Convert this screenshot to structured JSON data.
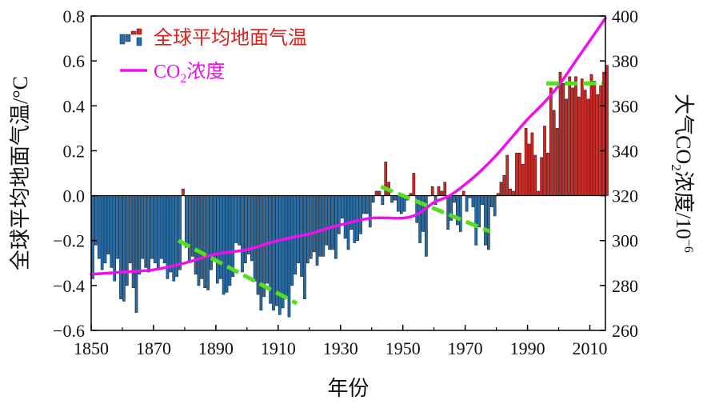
{
  "chart_data": {
    "type": "bar",
    "x_label": "年份",
    "y_left_label": "全球平均地面气温/°C",
    "y_right_label_parts": [
      "大气",
      "CO",
      "2",
      "浓度/10",
      "−6"
    ],
    "x_ticks": [
      "1850",
      "1870",
      "1890",
      "1910",
      "1930",
      "1950",
      "1970",
      "1990",
      "2010"
    ],
    "y_left_ticks": [
      "−0.6",
      "−0.4",
      "−0.2",
      "0.0",
      "0.2",
      "0.4",
      "0.6",
      "0.8"
    ],
    "y_right_ticks": [
      "260",
      "280",
      "300",
      "320",
      "340",
      "360",
      "380",
      "400"
    ],
    "x_range": [
      1850,
      2015
    ],
    "y_left_range": [
      -0.6,
      0.8
    ],
    "y_right_range": [
      260,
      400
    ],
    "legend": {
      "location": "top-left",
      "temp_label": "全球平均地面气温",
      "co2_label_parts": [
        "CO",
        "2",
        "浓度"
      ]
    },
    "colors": {
      "negative_bar": "#1f6fb2",
      "positive_bar": "#e0201b",
      "co2_line": "#ee11ee",
      "trend": "#55dd22"
    },
    "temperature_anomaly": {
      "years_start": 1850,
      "values": [
        -0.37,
        -0.22,
        -0.28,
        -0.33,
        -0.3,
        -0.26,
        -0.32,
        -0.38,
        -0.28,
        -0.46,
        -0.47,
        -0.4,
        -0.3,
        -0.41,
        -0.52,
        -0.35,
        -0.28,
        -0.32,
        -0.34,
        -0.28,
        -0.3,
        -0.33,
        -0.28,
        -0.3,
        -0.37,
        -0.34,
        -0.38,
        -0.36,
        -0.33,
        0.03,
        -0.23,
        -0.29,
        -0.27,
        -0.35,
        -0.4,
        -0.37,
        -0.41,
        -0.42,
        -0.33,
        -0.28,
        -0.39,
        -0.37,
        -0.44,
        -0.43,
        -0.4,
        -0.36,
        -0.21,
        -0.22,
        -0.34,
        -0.3,
        -0.26,
        -0.29,
        -0.38,
        -0.44,
        -0.51,
        -0.45,
        -0.39,
        -0.48,
        -0.51,
        -0.49,
        -0.53,
        -0.5,
        -0.45,
        -0.54,
        -0.4,
        -0.35,
        -0.3,
        -0.36,
        -0.46,
        -0.3,
        -0.28,
        -0.25,
        -0.31,
        -0.27,
        -0.27,
        -0.22,
        -0.24,
        -0.24,
        -0.28,
        -0.17,
        -0.1,
        -0.19,
        -0.24,
        -0.15,
        -0.21,
        -0.2,
        -0.17,
        -0.08,
        -0.08,
        -0.14,
        -0.03,
        0.02,
        0.02,
        -0.04,
        0.15,
        0.06,
        -0.03,
        -0.02,
        -0.07,
        -0.08,
        -0.07,
        -0.02,
        0.01,
        0.1,
        -0.12,
        -0.21,
        -0.16,
        -0.27,
        0.0,
        0.04,
        -0.04,
        0.04,
        0.02,
        0.06,
        -0.15,
        -0.11,
        -0.03,
        -0.13,
        -0.16,
        0.02,
        -0.07,
        -0.01,
        -0.05,
        -0.22,
        -0.14,
        -0.04,
        -0.22,
        -0.24,
        -0.05,
        -0.09,
        0.01,
        0.06,
        0.09,
        0.18,
        0.03,
        0.02,
        0.19,
        0.19,
        0.14,
        0.3,
        0.23,
        0.28,
        0.18,
        0.02,
        0.17,
        0.31,
        0.19,
        0.48,
        0.38,
        0.3,
        0.55,
        0.5,
        0.43,
        0.53,
        0.48,
        0.53,
        0.44,
        0.52,
        0.47,
        0.43,
        0.54,
        0.51,
        0.45,
        0.49,
        0.55,
        0.58
      ]
    },
    "co2_concentration": {
      "points": [
        [
          1850,
          285
        ],
        [
          1860,
          286
        ],
        [
          1870,
          287
        ],
        [
          1880,
          290
        ],
        [
          1890,
          294
        ],
        [
          1900,
          296
        ],
        [
          1910,
          300
        ],
        [
          1920,
          303
        ],
        [
          1930,
          307
        ],
        [
          1940,
          310
        ],
        [
          1950,
          310
        ],
        [
          1955,
          312
        ],
        [
          1960,
          317
        ],
        [
          1965,
          320
        ],
        [
          1970,
          325
        ],
        [
          1975,
          331
        ],
        [
          1980,
          338
        ],
        [
          1985,
          346
        ],
        [
          1990,
          354
        ],
        [
          1995,
          361
        ],
        [
          2000,
          369
        ],
        [
          2005,
          379
        ],
        [
          2010,
          389
        ],
        [
          2015,
          399
        ]
      ]
    },
    "trend_lines": [
      {
        "from": [
          1878,
          -0.2
        ],
        "to": [
          1916,
          -0.48
        ]
      },
      {
        "from": [
          1943,
          0.04
        ],
        "to": [
          1978,
          -0.16
        ]
      },
      {
        "from": [
          1996,
          0.5
        ],
        "to": [
          2014,
          0.5
        ]
      }
    ]
  }
}
